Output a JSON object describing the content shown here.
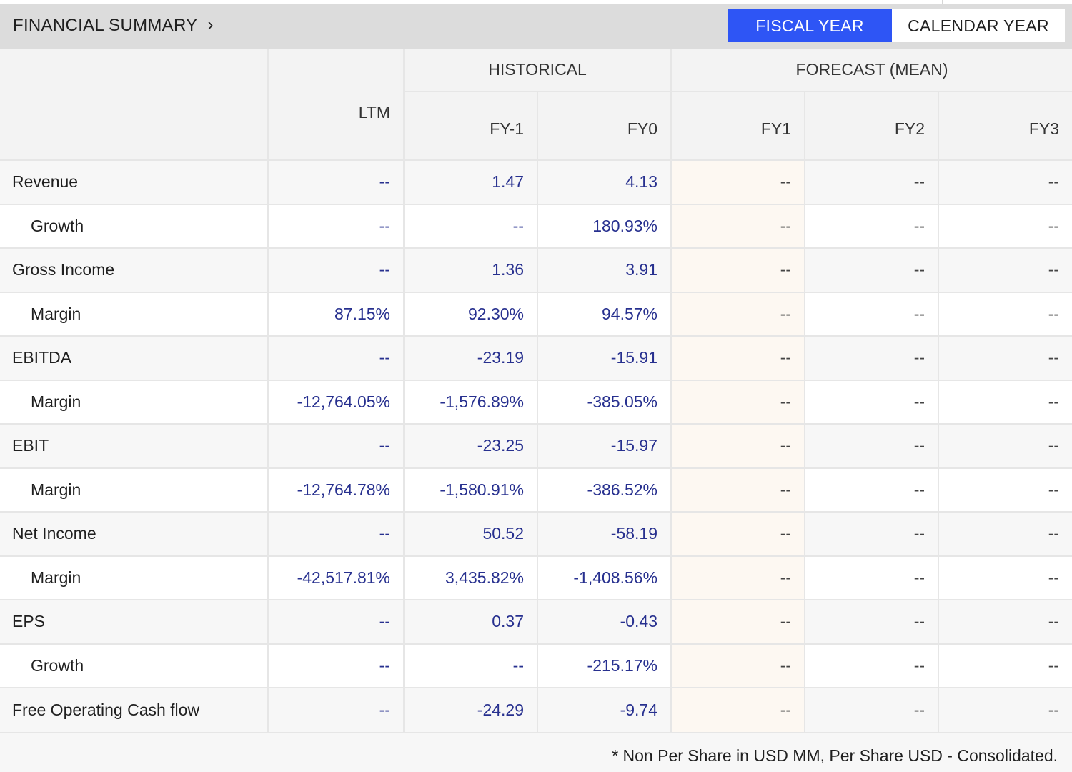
{
  "header": {
    "title": "FINANCIAL SUMMARY",
    "fiscal_label": "FISCAL YEAR",
    "calendar_label": "CALENDAR YEAR",
    "selected": "FISCAL YEAR",
    "accent": "#2e55f5"
  },
  "groups": {
    "historical": "HISTORICAL",
    "forecast": "FORECAST (MEAN)"
  },
  "columns": [
    "LTM",
    "FY-1",
    "FY0",
    "FY1",
    "FY2",
    "FY3"
  ],
  "rows": [
    {
      "label": "Revenue",
      "indent": false,
      "values": [
        "--",
        "1.47",
        "4.13",
        "--",
        "--",
        "--"
      ]
    },
    {
      "label": "Growth",
      "indent": true,
      "values": [
        "--",
        "--",
        "180.93%",
        "--",
        "--",
        "--"
      ]
    },
    {
      "label": "Gross Income",
      "indent": false,
      "values": [
        "--",
        "1.36",
        "3.91",
        "--",
        "--",
        "--"
      ]
    },
    {
      "label": "Margin",
      "indent": true,
      "values": [
        "87.15%",
        "92.30%",
        "94.57%",
        "--",
        "--",
        "--"
      ]
    },
    {
      "label": "EBITDA",
      "indent": false,
      "values": [
        "--",
        "-23.19",
        "-15.91",
        "--",
        "--",
        "--"
      ]
    },
    {
      "label": "Margin",
      "indent": true,
      "values": [
        "-12,764.05%",
        "-1,576.89%",
        "-385.05%",
        "--",
        "--",
        "--"
      ]
    },
    {
      "label": "EBIT",
      "indent": false,
      "values": [
        "--",
        "-23.25",
        "-15.97",
        "--",
        "--",
        "--"
      ]
    },
    {
      "label": "Margin",
      "indent": true,
      "values": [
        "-12,764.78%",
        "-1,580.91%",
        "-386.52%",
        "--",
        "--",
        "--"
      ]
    },
    {
      "label": "Net Income",
      "indent": false,
      "values": [
        "--",
        "50.52",
        "-58.19",
        "--",
        "--",
        "--"
      ]
    },
    {
      "label": "Margin",
      "indent": true,
      "values": [
        "-42,517.81%",
        "3,435.82%",
        "-1,408.56%",
        "--",
        "--",
        "--"
      ]
    },
    {
      "label": "EPS",
      "indent": false,
      "values": [
        "--",
        "0.37",
        "-0.43",
        "--",
        "--",
        "--"
      ]
    },
    {
      "label": "Growth",
      "indent": true,
      "values": [
        "--",
        "--",
        "-215.17%",
        "--",
        "--",
        "--"
      ]
    },
    {
      "label": "Free Operating Cash flow",
      "indent": false,
      "values": [
        "--",
        "-24.29",
        "-9.74",
        "--",
        "--",
        "--"
      ]
    }
  ],
  "footnote": "* Non Per Share in USD MM, Per Share USD - Consolidated."
}
